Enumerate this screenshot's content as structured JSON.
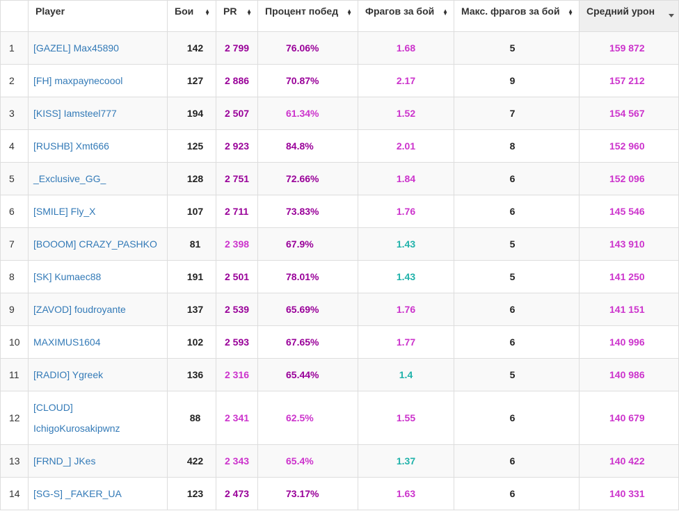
{
  "colors": {
    "purple_dark": "#990099",
    "purple": "#cc33cc",
    "teal": "#20b2aa"
  },
  "icons": {
    "sortable": "sort-both-icon",
    "sorted_desc": "sort-desc-icon"
  },
  "headers": {
    "player": "Player",
    "battles": "Бои",
    "pr": "PR",
    "winrate": "Процент побед",
    "frags": "Фрагов за бой",
    "max_frags": "Макс. фрагов за бой",
    "avg_damage": "Средний урон"
  },
  "rows": [
    {
      "n": "1",
      "player": "[GAZEL] Max45890",
      "battles": "142",
      "pr": "2 799",
      "pr_color": "#990099",
      "winrate": "76.06%",
      "winrate_color": "#990099",
      "frags": "1.68",
      "frags_color": "#cc33cc",
      "max_frags": "5",
      "avg_damage": "159 872"
    },
    {
      "n": "2",
      "player": "[FH] maxpaynecoool",
      "battles": "127",
      "pr": "2 886",
      "pr_color": "#990099",
      "winrate": "70.87%",
      "winrate_color": "#990099",
      "frags": "2.17",
      "frags_color": "#cc33cc",
      "max_frags": "9",
      "avg_damage": "157 212"
    },
    {
      "n": "3",
      "player": "[KISS] Iamsteel777",
      "battles": "194",
      "pr": "2 507",
      "pr_color": "#990099",
      "winrate": "61.34%",
      "winrate_color": "#cc33cc",
      "frags": "1.52",
      "frags_color": "#cc33cc",
      "max_frags": "7",
      "avg_damage": "154 567"
    },
    {
      "n": "4",
      "player": "[RUSHB] Xmt666",
      "battles": "125",
      "pr": "2 923",
      "pr_color": "#990099",
      "winrate": "84.8%",
      "winrate_color": "#990099",
      "frags": "2.01",
      "frags_color": "#cc33cc",
      "max_frags": "8",
      "avg_damage": "152 960"
    },
    {
      "n": "5",
      "player": "_Exclusive_GG_",
      "battles": "128",
      "pr": "2 751",
      "pr_color": "#990099",
      "winrate": "72.66%",
      "winrate_color": "#990099",
      "frags": "1.84",
      "frags_color": "#cc33cc",
      "max_frags": "6",
      "avg_damage": "152 096"
    },
    {
      "n": "6",
      "player": "[SMILE] Fly_X",
      "battles": "107",
      "pr": "2 711",
      "pr_color": "#990099",
      "winrate": "73.83%",
      "winrate_color": "#990099",
      "frags": "1.76",
      "frags_color": "#cc33cc",
      "max_frags": "6",
      "avg_damage": "145 546"
    },
    {
      "n": "7",
      "player": "[BOOOM] CRAZY_PASHKO",
      "battles": "81",
      "pr": "2 398",
      "pr_color": "#cc33cc",
      "winrate": "67.9%",
      "winrate_color": "#990099",
      "frags": "1.43",
      "frags_color": "#20b2aa",
      "max_frags": "5",
      "avg_damage": "143 910"
    },
    {
      "n": "8",
      "player": "[SK] Kumaec88",
      "battles": "191",
      "pr": "2 501",
      "pr_color": "#990099",
      "winrate": "78.01%",
      "winrate_color": "#990099",
      "frags": "1.43",
      "frags_color": "#20b2aa",
      "max_frags": "5",
      "avg_damage": "141 250"
    },
    {
      "n": "9",
      "player": "[ZAVOD] foudroyante",
      "battles": "137",
      "pr": "2 539",
      "pr_color": "#990099",
      "winrate": "65.69%",
      "winrate_color": "#990099",
      "frags": "1.76",
      "frags_color": "#cc33cc",
      "max_frags": "6",
      "avg_damage": "141 151"
    },
    {
      "n": "10",
      "player": "MAXIMUS1604",
      "battles": "102",
      "pr": "2 593",
      "pr_color": "#990099",
      "winrate": "67.65%",
      "winrate_color": "#990099",
      "frags": "1.77",
      "frags_color": "#cc33cc",
      "max_frags": "6",
      "avg_damage": "140 996"
    },
    {
      "n": "11",
      "player": "[RADIO] Ygreek",
      "battles": "136",
      "pr": "2 316",
      "pr_color": "#cc33cc",
      "winrate": "65.44%",
      "winrate_color": "#990099",
      "frags": "1.4",
      "frags_color": "#20b2aa",
      "max_frags": "5",
      "avg_damage": "140 986"
    },
    {
      "n": "12",
      "player": "[CLOUD] IchigoKurosakipwnz",
      "battles": "88",
      "pr": "2 341",
      "pr_color": "#cc33cc",
      "winrate": "62.5%",
      "winrate_color": "#cc33cc",
      "frags": "1.55",
      "frags_color": "#cc33cc",
      "max_frags": "6",
      "avg_damage": "140 679"
    },
    {
      "n": "13",
      "player": "[FRND_] JKes",
      "battles": "422",
      "pr": "2 343",
      "pr_color": "#cc33cc",
      "winrate": "65.4%",
      "winrate_color": "#cc33cc",
      "frags": "1.37",
      "frags_color": "#20b2aa",
      "max_frags": "6",
      "avg_damage": "140 422"
    },
    {
      "n": "14",
      "player": "[SG-S] _FAKER_UA",
      "battles": "123",
      "pr": "2 473",
      "pr_color": "#990099",
      "winrate": "73.17%",
      "winrate_color": "#990099",
      "frags": "1.63",
      "frags_color": "#cc33cc",
      "max_frags": "6",
      "avg_damage": "140 331"
    }
  ]
}
